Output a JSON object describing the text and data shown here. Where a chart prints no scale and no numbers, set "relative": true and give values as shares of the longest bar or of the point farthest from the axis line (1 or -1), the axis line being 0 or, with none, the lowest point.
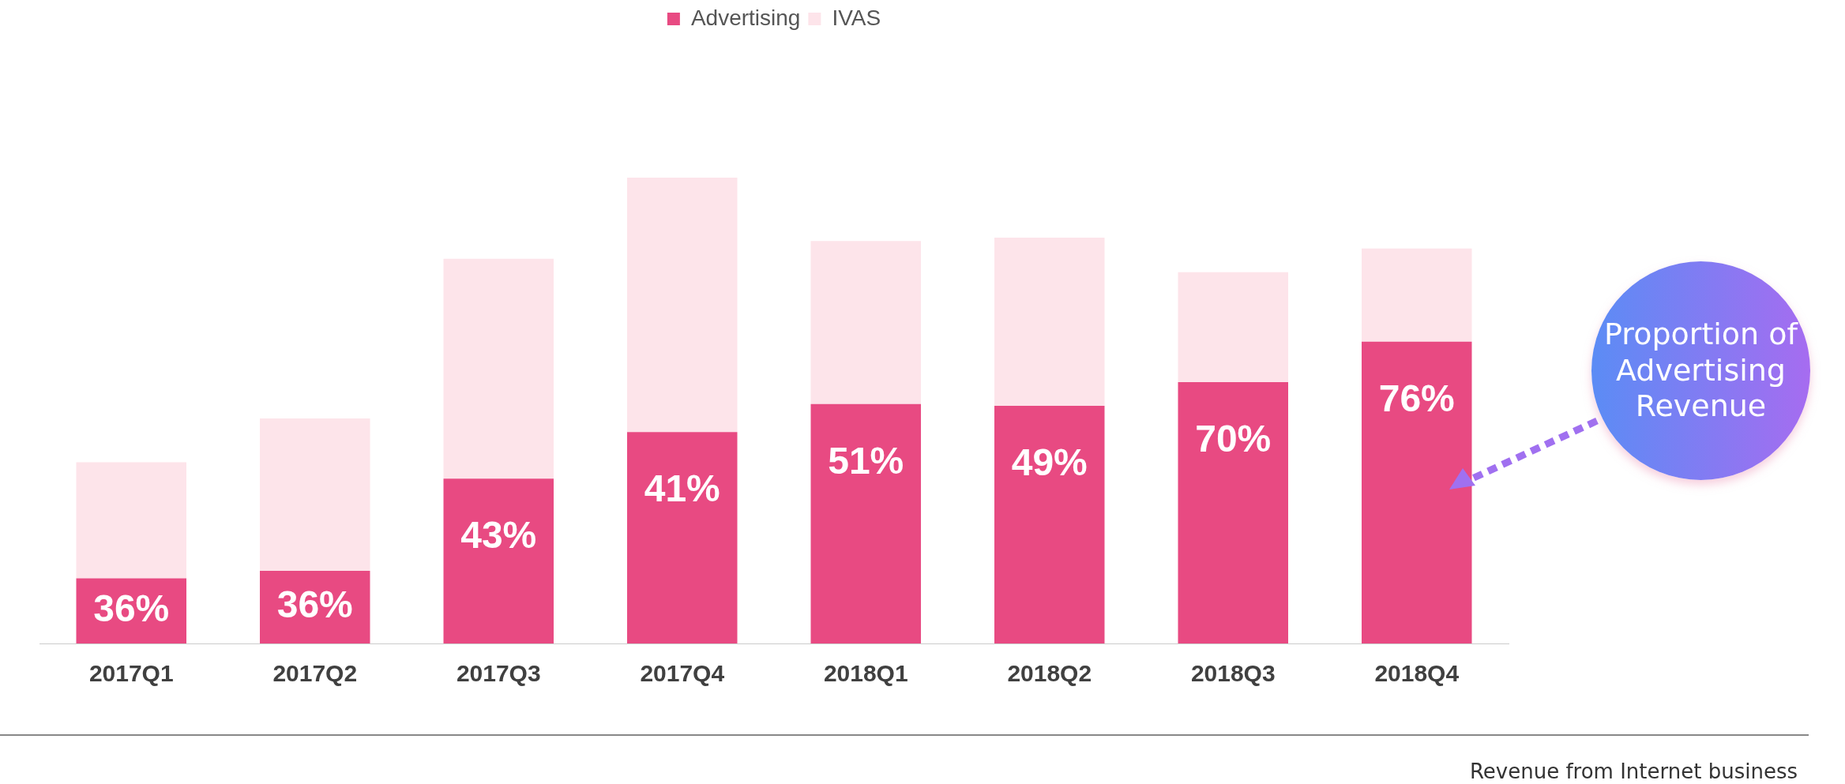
{
  "chart_data": {
    "type": "bar",
    "stacked": true,
    "relative": true,
    "legend": "top",
    "grid": false,
    "categories": [
      "2017Q1",
      "2017Q2",
      "2017Q3",
      "2017Q4",
      "2018Q1",
      "2018Q2",
      "2018Q3",
      "2018Q4"
    ],
    "series": [
      {
        "name": "Advertising",
        "color": "#e84a82",
        "values": [
          0.14,
          0.156,
          0.354,
          0.454,
          0.514,
          0.51,
          0.561,
          0.648
        ]
      },
      {
        "name": "IVAS",
        "color": "#fde4ea",
        "values": [
          0.249,
          0.327,
          0.472,
          0.546,
          0.35,
          0.361,
          0.236,
          0.2
        ]
      }
    ],
    "annotations": [
      "Proportion of Advertising Revenue",
      "Revenue from Internet business",
      {
        "text": "36%",
        "x": "2017Q1",
        "y": 0.14
      },
      {
        "text": "36%",
        "x": "2017Q2",
        "y": 0.156
      },
      {
        "text": "43%",
        "x": "2017Q3",
        "y": 0.354
      },
      {
        "text": "41%",
        "x": "2017Q4",
        "y": 0.454
      },
      {
        "text": "51%",
        "x": "2018Q1",
        "y": 0.514
      },
      {
        "text": "49%",
        "x": "2018Q2",
        "y": 0.51
      },
      {
        "text": "70%",
        "x": "2018Q3",
        "y": 0.561
      },
      {
        "text": "76%",
        "x": "2018Q4",
        "y": 0.648
      }
    ]
  }
}
